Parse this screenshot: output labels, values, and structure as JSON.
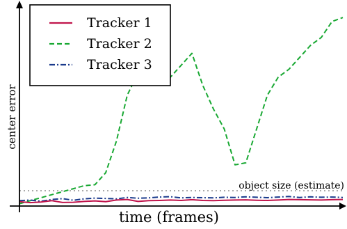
{
  "chart_data": {
    "type": "line",
    "title": "",
    "xlabel": "time (frames)",
    "ylabel": "center error",
    "xlim": [
      0,
      60
    ],
    "ylim": [
      0,
      100
    ],
    "x_ticks_shown": false,
    "y_ticks_shown": false,
    "grid": false,
    "legend_position": "top-left",
    "x": [
      0,
      2,
      4,
      6,
      8,
      10,
      12,
      14,
      16,
      18,
      20,
      22,
      24,
      26,
      28,
      30,
      32,
      34,
      36,
      38,
      40,
      42,
      44,
      46,
      48,
      50,
      52,
      54,
      56,
      58,
      60
    ],
    "series": [
      {
        "name": "Tracker 1",
        "color": "#c0144b",
        "style": "solid",
        "values": [
          1.5,
          1.0,
          1.3,
          2.0,
          1.1,
          1.2,
          1.6,
          1.9,
          1.5,
          2.3,
          2.6,
          1.6,
          2.0,
          2.1,
          2.3,
          2.1,
          2.5,
          2.1,
          2.0,
          2.2,
          2.3,
          2.4,
          2.2,
          2.1,
          2.3,
          2.6,
          2.5,
          2.4,
          2.3,
          2.5,
          2.6
        ]
      },
      {
        "name": "Tracker 2",
        "color": "#18a832",
        "style": "dashed",
        "values": [
          0.5,
          2.0,
          3.5,
          5.0,
          6.5,
          8.0,
          9.5,
          10.0,
          16.0,
          32.0,
          55.0,
          66.0,
          72.0,
          60.0,
          64.0,
          70.0,
          76.0,
          60.0,
          48.0,
          38.0,
          20.0,
          21.0,
          38.0,
          55.0,
          64.0,
          68.0,
          74.0,
          80.0,
          84.0,
          92.0,
          94.0
        ]
      },
      {
        "name": "Tracker 3",
        "color": "#1a3a8c",
        "style": "dashdot",
        "values": [
          2.0,
          2.3,
          1.7,
          2.6,
          3.0,
          2.2,
          2.9,
          3.3,
          3.1,
          2.9,
          3.6,
          3.2,
          3.4,
          3.8,
          4.0,
          3.4,
          3.6,
          3.5,
          3.4,
          3.7,
          3.6,
          3.9,
          3.7,
          3.5,
          3.8,
          4.1,
          3.6,
          3.9,
          3.7,
          3.8,
          3.6
        ]
      }
    ],
    "reference_line": {
      "label": "object size (estimate)",
      "value": 7.0,
      "color": "#aaaaaa",
      "style": "dotted"
    }
  }
}
